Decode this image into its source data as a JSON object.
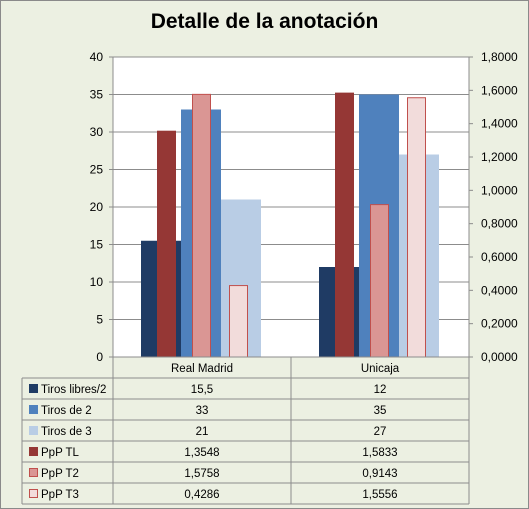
{
  "chart_data": {
    "type": "bar",
    "title": "Detalle de la anotación",
    "categories": [
      "Real Madrid",
      "Unicaja"
    ],
    "ylim_left": [
      0,
      40
    ],
    "ylim_right": [
      0,
      1.8
    ],
    "yticks_left": [
      "0",
      "5",
      "10",
      "15",
      "20",
      "25",
      "30",
      "35",
      "40"
    ],
    "yticks_right": [
      "0,0000",
      "0,2000",
      "0,4000",
      "0,6000",
      "0,8000",
      "1,0000",
      "1,2000",
      "1,4000",
      "1,6000",
      "1,8000"
    ],
    "grid": true,
    "legend": "data-table",
    "series": [
      {
        "name": "Tiros libres/2",
        "axis": "left",
        "color": "#1f3b64",
        "border": "#1f3b64",
        "values": [
          15.5,
          12
        ],
        "labels": [
          "15,5",
          "12"
        ]
      },
      {
        "name": "Tiros de 2",
        "axis": "left",
        "color": "#4f81bd",
        "border": "#4f81bd",
        "values": [
          33,
          35
        ],
        "labels": [
          "33",
          "35"
        ]
      },
      {
        "name": "Tiros de 3",
        "axis": "left",
        "color": "#b9cde5",
        "border": "#b9cde5",
        "values": [
          21,
          27
        ],
        "labels": [
          "21",
          "27"
        ]
      },
      {
        "name": "PpP TL",
        "axis": "right",
        "color": "#953735",
        "border": "#953735",
        "values": [
          1.3548,
          1.5833
        ],
        "labels": [
          "1,3548",
          "1,5833"
        ]
      },
      {
        "name": "PpP T2",
        "axis": "right",
        "color": "#da9694",
        "border": "#c0504d",
        "values": [
          1.5758,
          0.9143
        ],
        "labels": [
          "1,5758",
          "0,9143"
        ]
      },
      {
        "name": "PpP T3",
        "axis": "right",
        "color": "#f2dcdb",
        "border": "#c0504d",
        "values": [
          0.4286,
          1.5556
        ],
        "labels": [
          "0,4286",
          "1,5556"
        ]
      }
    ]
  }
}
